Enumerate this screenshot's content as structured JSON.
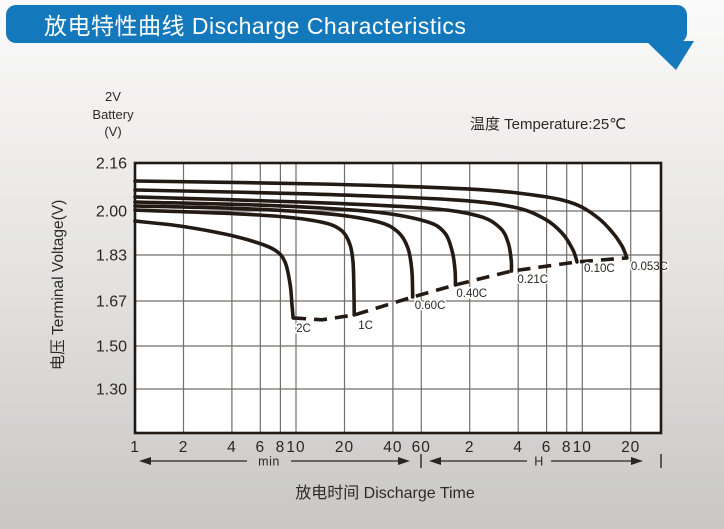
{
  "header": {
    "title": "放电特性曲线 Discharge Characteristics",
    "bg_color": "#1478bd",
    "text_color": "#ffffff"
  },
  "panel": {
    "battery_label_lines": [
      "2V",
      "Battery",
      "(V)"
    ],
    "temperature_note": "温度 Temperature:25℃"
  },
  "chart_data": {
    "type": "line",
    "title": "放电特性曲线 Discharge Characteristics",
    "x_axis": {
      "title": "放电时间 Discharge Time",
      "scale": "log",
      "unit_sections": [
        {
          "label": "min",
          "ticks": [
            {
              "label": "1",
              "t": 1
            },
            {
              "label": "2",
              "t": 2
            },
            {
              "label": "4",
              "t": 4
            },
            {
              "label": "6",
              "t": 6
            },
            {
              "label": "8",
              "t": 8
            },
            {
              "label": "10",
              "t": 10
            },
            {
              "label": "20",
              "t": 20
            },
            {
              "label": "40",
              "t": 40
            },
            {
              "label": "60",
              "t": 60
            }
          ]
        },
        {
          "label": "H",
          "ticks": [
            {
              "label": "2",
              "t": 120
            },
            {
              "label": "4",
              "t": 240
            },
            {
              "label": "6",
              "t": 360
            },
            {
              "label": "8",
              "t": 480
            },
            {
              "label": "10",
              "t": 600
            },
            {
              "label": "20",
              "t": 1200
            }
          ]
        }
      ]
    },
    "y_axis": {
      "title": "电压 Terminal Voltage(V)",
      "ticks": [
        {
          "label": "2.16",
          "v": 2.16
        },
        {
          "label": "2.00",
          "v": 2.0
        },
        {
          "label": "1.83",
          "v": 1.83
        },
        {
          "label": "1.67",
          "v": 1.67
        },
        {
          "label": "1.50",
          "v": 1.5
        },
        {
          "label": "1.30",
          "v": 1.3
        }
      ],
      "ylim_labeled": [
        1.3,
        2.16
      ]
    },
    "grid": true,
    "line_color": "#241a14",
    "series": [
      {
        "name": "2C",
        "points": [
          [
            1,
            1.961
          ],
          [
            1.9,
            1.942
          ],
          [
            3.6,
            1.911
          ],
          [
            5.6,
            1.88
          ],
          [
            7.4,
            1.849
          ],
          [
            8.55,
            1.806
          ],
          [
            9.2,
            1.726
          ],
          [
            9.45,
            1.655
          ],
          [
            9.6,
            1.606
          ]
        ]
      },
      {
        "name": "1C",
        "points": [
          [
            1,
            2.003
          ],
          [
            3.4,
            1.992
          ],
          [
            8.6,
            1.977
          ],
          [
            15.1,
            1.954
          ],
          [
            19.3,
            1.923
          ],
          [
            21.6,
            1.872
          ],
          [
            22.6,
            1.806
          ],
          [
            22.9,
            1.708
          ],
          [
            23,
            1.617
          ]
        ]
      },
      {
        "name": "0.60C",
        "points": [
          [
            1,
            2.017
          ],
          [
            5.2,
            2.007
          ],
          [
            16.3,
            1.988
          ],
          [
            32.3,
            1.958
          ],
          [
            43,
            1.919
          ],
          [
            49.5,
            1.858
          ],
          [
            52.4,
            1.778
          ],
          [
            53.1,
            1.684
          ]
        ]
      },
      {
        "name": "0.40C",
        "points": [
          [
            1,
            2.03
          ],
          [
            8,
            2.017
          ],
          [
            30.9,
            1.996
          ],
          [
            63.3,
            1.961
          ],
          [
            83,
            1.919
          ],
          [
            93.1,
            1.847
          ],
          [
            97.2,
            1.778
          ],
          [
            97.7,
            1.726
          ]
        ]
      },
      {
        "name": "0.21C",
        "points": [
          [
            1,
            2.047
          ],
          [
            10.6,
            2.03
          ],
          [
            63.3,
            2.01
          ],
          [
            135,
            1.981
          ],
          [
            185,
            1.935
          ],
          [
            208,
            1.877
          ],
          [
            217,
            1.813
          ],
          [
            217.7,
            1.774
          ]
        ]
      },
      {
        "name": "0.10C",
        "points": [
          [
            1,
            2.07
          ],
          [
            12.2,
            2.057
          ],
          [
            97,
            2.037
          ],
          [
            229,
            2.012
          ],
          [
            351,
            1.969
          ],
          [
            449,
            1.915
          ],
          [
            524,
            1.851
          ],
          [
            556,
            1.806
          ]
        ]
      },
      {
        "name": "0.053C",
        "points": [
          [
            1,
            2.1
          ],
          [
            14.1,
            2.09
          ],
          [
            120,
            2.073
          ],
          [
            329,
            2.05
          ],
          [
            542,
            2.023
          ],
          [
            753,
            1.973
          ],
          [
            930,
            1.915
          ],
          [
            1060,
            1.864
          ],
          [
            1136,
            1.82
          ]
        ]
      }
    ],
    "cutoff_line": {
      "style": "dashed",
      "points": [
        [
          9.6,
          1.606
        ],
        [
          14.5,
          1.599
        ],
        [
          23,
          1.617
        ],
        [
          53.1,
          1.684
        ],
        [
          97.7,
          1.726
        ],
        [
          217.7,
          1.774
        ],
        [
          556,
          1.806
        ],
        [
          1136,
          1.82
        ]
      ]
    }
  }
}
